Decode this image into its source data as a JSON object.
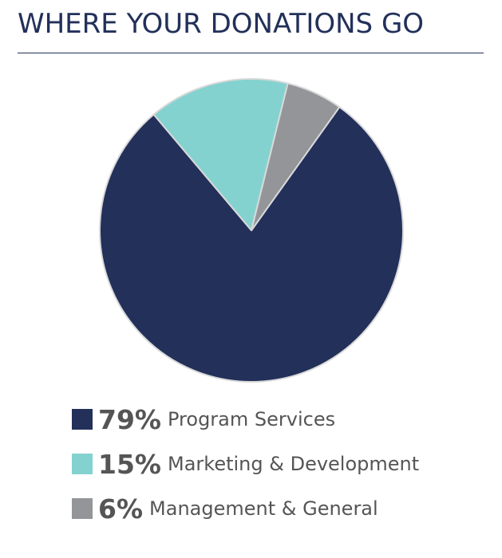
{
  "chart_data": {
    "type": "pie",
    "title": "WHERE YOUR DONATIONS GO",
    "categories": [
      "Program Services",
      "Marketing & Development",
      "Management & General"
    ],
    "values": [
      79,
      15,
      6
    ],
    "colors": [
      "#22305a",
      "#84d2cf",
      "#939598"
    ],
    "legend": [
      {
        "pct": "79%",
        "label": "Program Services",
        "color": "#22305a"
      },
      {
        "pct": "15%",
        "label": "Marketing & Development",
        "color": "#84d2cf"
      },
      {
        "pct": "6%",
        "label": "Management & General",
        "color": "#939598"
      }
    ],
    "legend_position": "bottom"
  }
}
